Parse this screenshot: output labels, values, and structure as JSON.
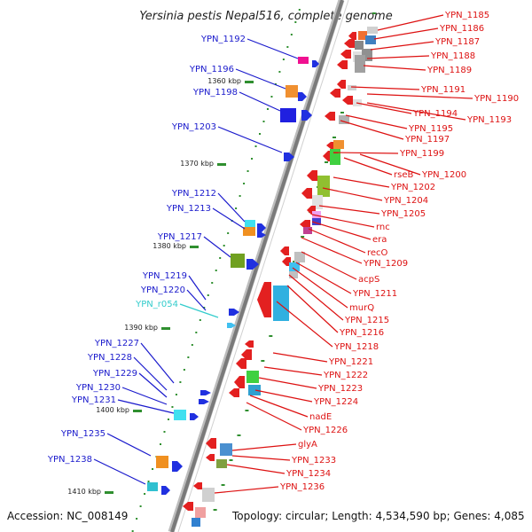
{
  "title": "Yersinia pestis Nepal516, complete genome",
  "footer": {
    "accession": "Accession: NC_008149",
    "topology": "Topology: circular; Length: 4,534,590 bp; Genes: 4,085"
  },
  "colors": {
    "left_label": "#1a1acc",
    "right_label": "#dd1111",
    "rna_label": "#33cccc",
    "backbone": "#7a7a7a",
    "tick": "#2f8f2f"
  },
  "kbp_marks": [
    "1360 kbp",
    "1370 kbp",
    "1380 kbp",
    "1390 kbp",
    "1400 kbp",
    "1410 kbp"
  ],
  "left_labels": [
    {
      "text": "YPN_1192",
      "kind": "gene"
    },
    {
      "text": "YPN_1196",
      "kind": "gene"
    },
    {
      "text": "YPN_1198",
      "kind": "gene"
    },
    {
      "text": "YPN_1203",
      "kind": "gene"
    },
    {
      "text": "YPN_1212",
      "kind": "gene"
    },
    {
      "text": "YPN_1213",
      "kind": "gene"
    },
    {
      "text": "YPN_1217",
      "kind": "gene"
    },
    {
      "text": "YPN_1219",
      "kind": "gene"
    },
    {
      "text": "YPN_1220",
      "kind": "gene"
    },
    {
      "text": "YPN_r054",
      "kind": "rna"
    },
    {
      "text": "YPN_1227",
      "kind": "gene"
    },
    {
      "text": "YPN_1228",
      "kind": "gene"
    },
    {
      "text": "YPN_1229",
      "kind": "gene"
    },
    {
      "text": "YPN_1230",
      "kind": "gene"
    },
    {
      "text": "YPN_1231",
      "kind": "gene"
    },
    {
      "text": "YPN_1235",
      "kind": "gene"
    },
    {
      "text": "YPN_1238",
      "kind": "gene"
    }
  ],
  "right_labels": [
    "YPN_1185",
    "YPN_1186",
    "YPN_1187",
    "YPN_1188",
    "YPN_1189",
    "YPN_1191",
    "YPN_1190",
    "YPN_1194",
    "YPN_1193",
    "YPN_1195",
    "YPN_1197",
    "YPN_1199",
    "rseB",
    "YPN_1200",
    "YPN_1202",
    "YPN_1204",
    "YPN_1205",
    "rnc",
    "era",
    "recO",
    "YPN_1209",
    "acpS",
    "YPN_1211",
    "murQ",
    "YPN_1215",
    "YPN_1216",
    "YPN_1218",
    "YPN_1221",
    "YPN_1222",
    "YPN_1223",
    "YPN_1224",
    "nadE",
    "YPN_1226",
    "glyA",
    "YPN_1233",
    "YPN_1234",
    "YPN_1236"
  ]
}
